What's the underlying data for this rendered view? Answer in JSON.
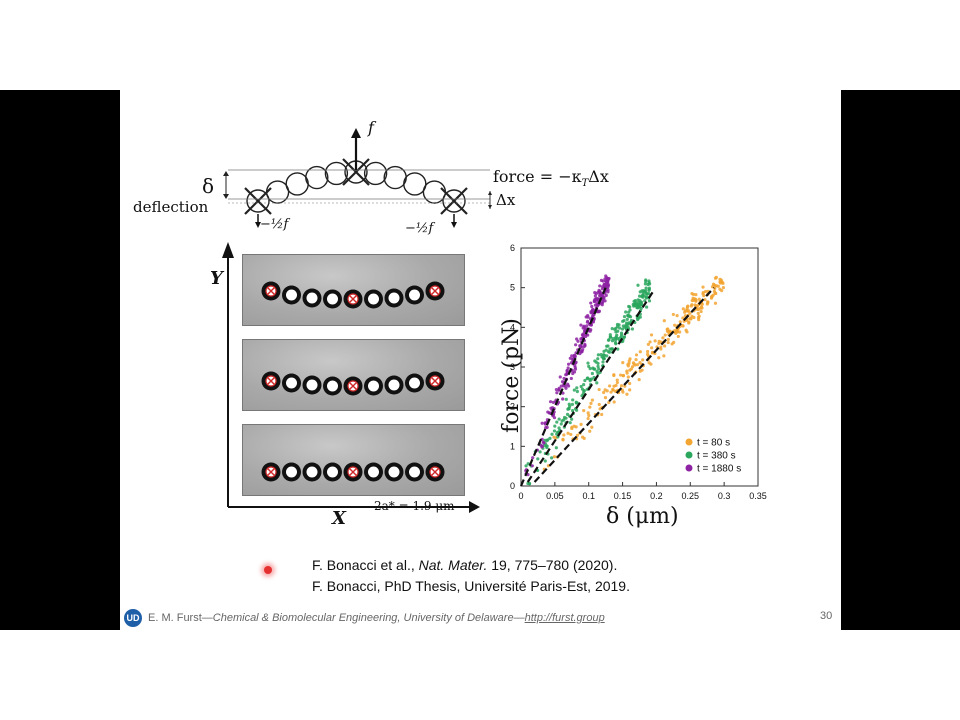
{
  "diagram": {
    "label_f": "f",
    "label_delta": "δ",
    "label_deflection": "deflection",
    "label_force_eq": "force = −κ",
    "label_force_sub": "T",
    "label_force_tail": "Δx",
    "label_dx": "Δx",
    "label_half_left": "−½f",
    "label_half_right": "−½f"
  },
  "images": {
    "axis_y": "Y",
    "axis_x": "X",
    "scale_label": "2a* = 1.9 μm"
  },
  "chart_data": {
    "type": "scatter",
    "title": "",
    "xlabel": "δ (μm)",
    "ylabel": "force (pN)",
    "xlim": [
      0,
      0.35
    ],
    "ylim": [
      0,
      6
    ],
    "xticks": [
      "0",
      "0.05",
      "0.1",
      "0.15",
      "0.2",
      "0.25",
      "0.3",
      "0.35"
    ],
    "yticks": [
      "0",
      "1",
      "2",
      "3",
      "4",
      "5",
      "6"
    ],
    "legend_position": "bottom-right",
    "series": [
      {
        "name": "t = 80 s",
        "color": "#f2a531",
        "slope": 17.5,
        "xmax": 0.3,
        "spread": 0.022,
        "fit_x": [
          0.02,
          0.285
        ],
        "fit_y": [
          0.1,
          5.0
        ]
      },
      {
        "name": "t = 380 s",
        "color": "#2aa65d",
        "slope": 26.5,
        "xmax": 0.19,
        "spread": 0.015,
        "fit_x": [
          0.01,
          0.195
        ],
        "fit_y": [
          0.1,
          4.9
        ]
      },
      {
        "name": "t = 1880 s",
        "color": "#8d22a3",
        "slope": 40.5,
        "xmax": 0.13,
        "spread": 0.009,
        "fit_x": [
          0.0,
          0.125
        ],
        "fit_y": [
          0.0,
          5.0
        ]
      }
    ]
  },
  "references": [
    {
      "pre": "F. Bonacci et al., ",
      "journal": "Nat. Mater.",
      "post": " 19, 775–780 (2020)."
    },
    {
      "pre": "F. Bonacci, PhD Thesis, Université Paris-Est, 2019.",
      "journal": "",
      "post": ""
    }
  ],
  "footer": {
    "logo_text": "UD",
    "author": "E. M. Furst—",
    "affiliation": "Chemical & Biomolecular Engineering, University of Delaware—",
    "url": "http://furst.group",
    "page": "30"
  }
}
